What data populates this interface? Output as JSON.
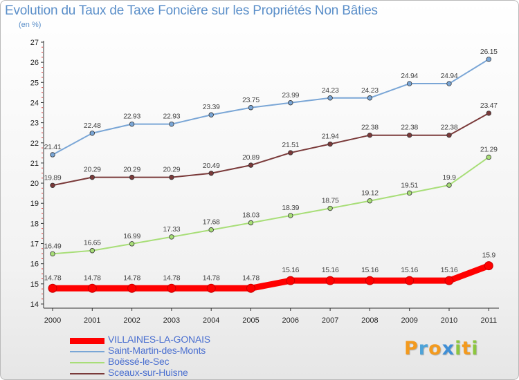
{
  "title": "Evolution du Taux de Taxe Foncière sur les Propriétés Non Bâties",
  "unit_label": "(en %)",
  "logo": {
    "letters": [
      "P",
      "r",
      "o",
      "x",
      "i",
      "t",
      "i"
    ],
    "colors": [
      "#f39a1e",
      "#4ea3d8",
      "#f39a1e",
      "#3f8fd6",
      "#8cc63f",
      "#f39a1e",
      "#8cc63f"
    ]
  },
  "chart_data": {
    "type": "line",
    "title": "Evolution du Taux de Taxe Foncière sur les Propriétés Non Bâties",
    "ylabel": "(en %)",
    "xlabel": "",
    "x": [
      "2000",
      "2001",
      "2002",
      "2003",
      "2004",
      "2005",
      "2006",
      "2007",
      "2008",
      "2009",
      "2010",
      "2011"
    ],
    "ylim": [
      14,
      27
    ],
    "yticks": [
      "14",
      "15",
      "16",
      "17",
      "18",
      "19",
      "20",
      "21",
      "22",
      "23",
      "24",
      "25",
      "26",
      "27"
    ],
    "grid": false,
    "legend_position": "bottom-left",
    "series": [
      {
        "name": "VILLAINES-LA-GONAIS",
        "color": "#ff0000",
        "values": [
          14.78,
          14.78,
          14.78,
          14.78,
          14.78,
          14.78,
          15.16,
          15.16,
          15.16,
          15.16,
          15.16,
          15.9
        ],
        "labels": [
          "14.78",
          "14.78",
          "14.78",
          "14.78",
          "14.78",
          "14.78",
          "15.16",
          "15.16",
          "15.16",
          "15.16",
          "15.16",
          "15.9"
        ]
      },
      {
        "name": "Saint-Martin-des-Monts",
        "color": "#7aa6d6",
        "values": [
          21.41,
          22.48,
          22.93,
          22.93,
          23.39,
          23.75,
          23.99,
          24.23,
          24.23,
          24.94,
          24.94,
          26.15
        ],
        "labels": [
          "21.41",
          "22.48",
          "22.93",
          "22.93",
          "23.39",
          "23.75",
          "23.99",
          "24.23",
          "24.23",
          "24.94",
          "24.94",
          "26.15"
        ]
      },
      {
        "name": "Boëssé-le-Sec",
        "color": "#a8de78",
        "values": [
          16.49,
          16.65,
          16.99,
          17.33,
          17.68,
          18.03,
          18.39,
          18.75,
          19.12,
          19.51,
          19.9,
          21.29
        ],
        "labels": [
          "16.49",
          "16.65",
          "16.99",
          "17.33",
          "17.68",
          "18.03",
          "18.39",
          "18.75",
          "19.12",
          "19.51",
          "19.9",
          "21.29"
        ]
      },
      {
        "name": "Sceaux-sur-Huisne",
        "color": "#7a3a3a",
        "values": [
          19.89,
          20.29,
          20.29,
          20.29,
          20.49,
          20.89,
          21.51,
          21.94,
          22.38,
          22.38,
          22.38,
          23.47
        ],
        "labels": [
          "19.89",
          "20.29",
          "20.29",
          "20.29",
          "20.49",
          "20.89",
          "21.51",
          "21.94",
          "22.38",
          "22.38",
          "22.38",
          "23.47"
        ]
      }
    ]
  }
}
